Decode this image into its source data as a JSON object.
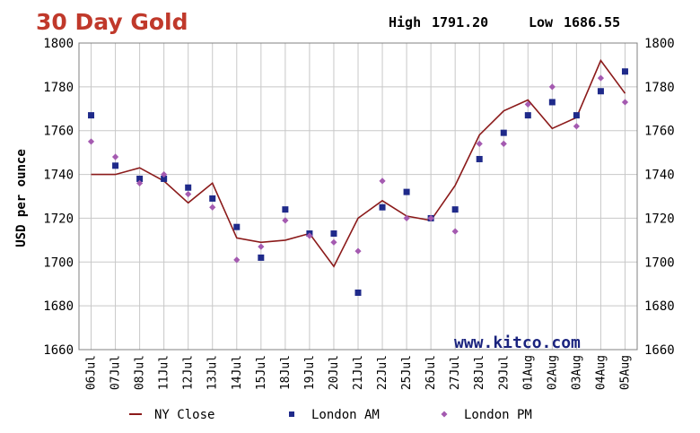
{
  "header": {
    "title": "30 Day Gold",
    "high_label": "High",
    "high_value": "1791.20",
    "low_label": "Low",
    "low_value": "1686.55"
  },
  "watermark": "www.kitco.com",
  "colors": {
    "title": "#c0392b",
    "ny_close": "#8b1a1a",
    "london_am": "#1f2a8a",
    "london_pm": "#a45ab0",
    "grid": "#c8c8c8",
    "plot_border": "#808080"
  },
  "chart_data": {
    "type": "line",
    "title": "30 Day Gold",
    "ylabel": "USD per ounce",
    "xlabel": "",
    "ylim": [
      1660,
      1800
    ],
    "yticks": [
      1660,
      1680,
      1700,
      1720,
      1740,
      1760,
      1780,
      1800
    ],
    "y_axis_sides": "left and right",
    "grid": true,
    "legend_position": "bottom",
    "categories": [
      "06Jul",
      "07Jul",
      "08Jul",
      "11Jul",
      "12Jul",
      "13Jul",
      "14Jul",
      "15Jul",
      "18Jul",
      "19Jul",
      "20Jul",
      "21Jul",
      "22Jul",
      "25Jul",
      "26Jul",
      "27Jul",
      "28Jul",
      "29Jul",
      "01Aug",
      "02Aug",
      "03Aug",
      "04Aug",
      "05Aug"
    ],
    "series": [
      {
        "name": "NY Close",
        "style": "line",
        "values": [
          1740,
          1740,
          1743,
          1737,
          1727,
          1736,
          1711,
          1709,
          1710,
          1713,
          1698,
          1720,
          1728,
          1721,
          1719,
          1735,
          1758,
          1769,
          1774,
          1761,
          1766,
          1792,
          1777
        ]
      },
      {
        "name": "London AM",
        "style": "square-marker",
        "values": [
          1767,
          1744,
          1738,
          1738,
          1734,
          1729,
          1716,
          1702,
          1724,
          1713,
          1713,
          1686,
          1725,
          1732,
          1720,
          1724,
          1747,
          1759,
          1767,
          1773,
          1767,
          1778,
          1787
        ]
      },
      {
        "name": "London PM",
        "style": "diamond-marker",
        "values": [
          1755,
          1748,
          1736,
          1740,
          1731,
          1725,
          1701,
          1707,
          1719,
          1712,
          1709,
          1705,
          1737,
          1720,
          1720,
          1714,
          1754,
          1754,
          1772,
          1780,
          1762,
          1784,
          1773
        ]
      }
    ]
  }
}
